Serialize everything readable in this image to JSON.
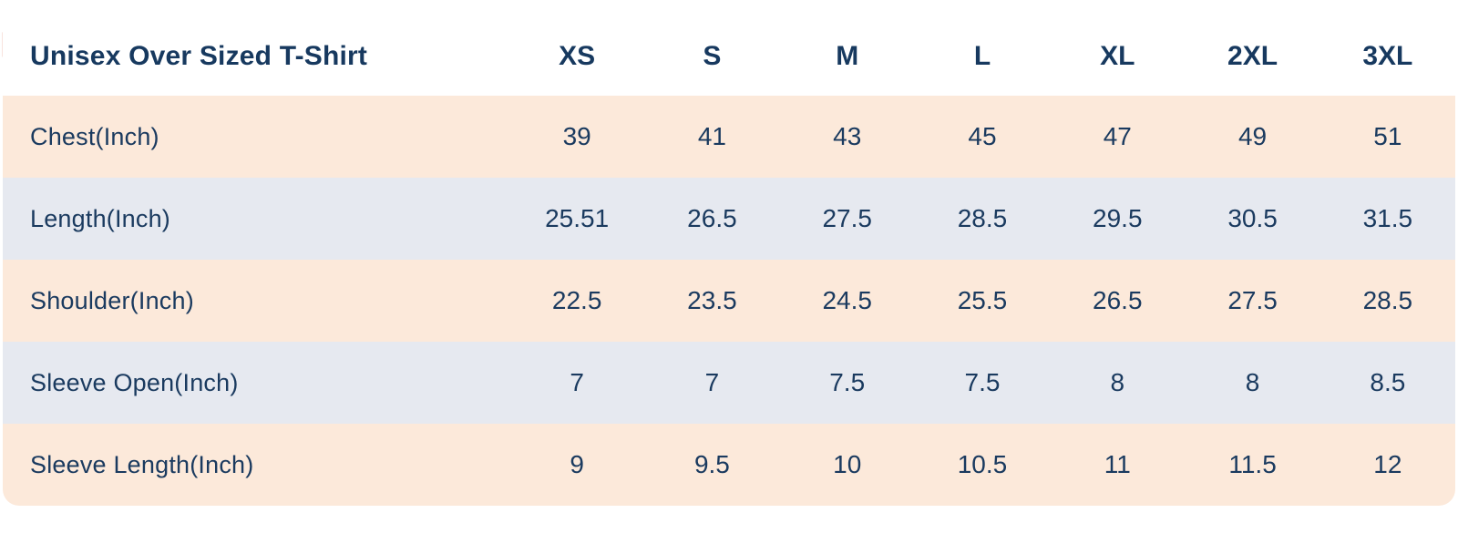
{
  "colors": {
    "text_navy": "#1a3a5f",
    "row_peach": "#fce9da",
    "row_blue_gray": "#e6e9f0",
    "header_background": "#ffffff",
    "corner_fold": "#f8e3de"
  },
  "chart_data": {
    "type": "table",
    "title": "Unisex Over Sized T-Shirt",
    "columns": [
      "XS",
      "S",
      "M",
      "L",
      "XL",
      "2XL",
      "3XL"
    ],
    "rows": [
      {
        "label": "Chest(Inch)",
        "values": [
          "39",
          "41",
          "43",
          "45",
          "47",
          "49",
          "51"
        ]
      },
      {
        "label": "Length(Inch)",
        "values": [
          "25.51",
          "26.5",
          "27.5",
          "28.5",
          "29.5",
          "30.5",
          "31.5"
        ]
      },
      {
        "label": "Shoulder(Inch)",
        "values": [
          "22.5",
          "23.5",
          "24.5",
          "25.5",
          "26.5",
          "27.5",
          "28.5"
        ]
      },
      {
        "label": "Sleeve Open(Inch)",
        "values": [
          "7",
          "7",
          "7.5",
          "7.5",
          "8",
          "8",
          "8.5"
        ]
      },
      {
        "label": "Sleeve Length(Inch)",
        "values": [
          "9",
          "9.5",
          "10",
          "10.5",
          "11",
          "11.5",
          "12"
        ]
      }
    ]
  }
}
